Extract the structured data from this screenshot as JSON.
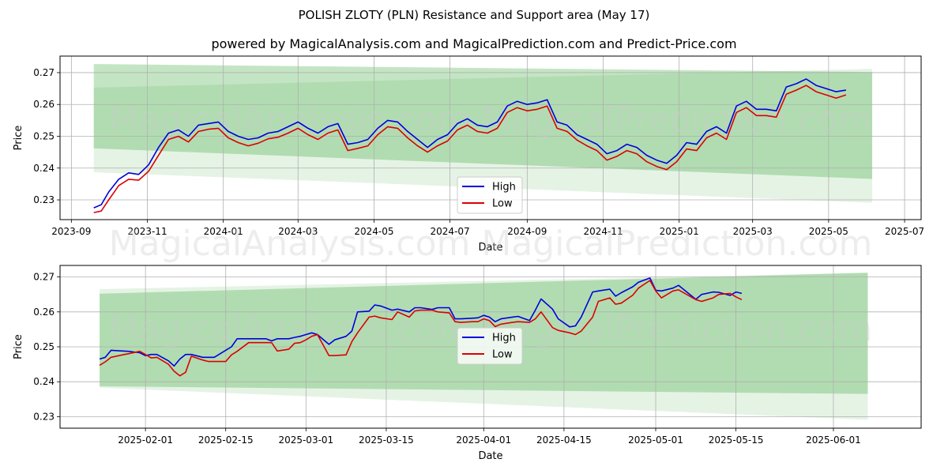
{
  "header": {
    "title": "POLISH ZLOTY (PLN) Resistance and Support area (May 17)",
    "subtitle": "powered by MagicalAnalysis.com and MagicalPrediction.com and Predict-Price.com"
  },
  "watermark": "MagicalAnalysis.com   MagicalPrediction.com",
  "colors": {
    "high": "#0000dd",
    "low": "#dd0000",
    "band": "#2ca02c",
    "grid": "#b0b0b0"
  },
  "chart_data": [
    {
      "type": "line",
      "xlabel": "Date",
      "ylabel": "Price",
      "x_tick_labels": [
        "2023-09",
        "2023-11",
        "2024-01",
        "2024-03",
        "2024-05",
        "2024-07",
        "2024-09",
        "2024-11",
        "2025-01",
        "2025-03",
        "2025-05",
        "2025-07"
      ],
      "x_tick_days": [
        0,
        61,
        122,
        182,
        243,
        304,
        366,
        427,
        488,
        547,
        608,
        669
      ],
      "xlim_days": [
        -9.1,
        682.3
      ],
      "y_ticks": [
        0.23,
        0.24,
        0.25,
        0.26,
        0.27
      ],
      "ylim": [
        0.2238,
        0.2752
      ],
      "grid": true,
      "legend": {
        "position": "lower-center",
        "entries": [
          "High",
          "Low"
        ]
      },
      "bands": [
        {
          "x0": 18.0,
          "x1": 643.0,
          "upper": [
            0.2727,
            0.2702
          ],
          "lower": [
            0.2462,
            0.2366
          ],
          "opacity": 0.28
        },
        {
          "x0": 18.0,
          "x1": 643.0,
          "upper": [
            0.2653,
            0.2712
          ],
          "lower": [
            0.2387,
            0.2291
          ],
          "opacity": 0.12
        }
      ],
      "series": [
        {
          "name": "High",
          "x": [
            18,
            24,
            30,
            38,
            46,
            54,
            62,
            70,
            78,
            86,
            94,
            102,
            110,
            118,
            126,
            134,
            142,
            150,
            158,
            166,
            174,
            182,
            190,
            198,
            206,
            214,
            222,
            230,
            238,
            246,
            254,
            262,
            270,
            278,
            286,
            294,
            302,
            310,
            318,
            326,
            334,
            342,
            350,
            358,
            366,
            374,
            382,
            390,
            398,
            406,
            414,
            422,
            430,
            438,
            446,
            454,
            462,
            470,
            478,
            486,
            494,
            502,
            510,
            518,
            526,
            534,
            542,
            550,
            558,
            566,
            574,
            582,
            590,
            598,
            606,
            614,
            622
          ],
          "values": [
            0.2275,
            0.2285,
            0.2325,
            0.2365,
            0.2385,
            0.238,
            0.241,
            0.2465,
            0.251,
            0.252,
            0.25,
            0.2535,
            0.254,
            0.2545,
            0.2515,
            0.25,
            0.249,
            0.2495,
            0.251,
            0.2515,
            0.253,
            0.2545,
            0.2525,
            0.251,
            0.253,
            0.254,
            0.2475,
            0.248,
            0.249,
            0.2525,
            0.255,
            0.2545,
            0.2515,
            0.249,
            0.2465,
            0.249,
            0.2505,
            0.254,
            0.2555,
            0.2535,
            0.253,
            0.2545,
            0.2595,
            0.261,
            0.26,
            0.2605,
            0.2615,
            0.2545,
            0.2535,
            0.2505,
            0.249,
            0.2475,
            0.2445,
            0.2455,
            0.2475,
            0.2465,
            0.244,
            0.2425,
            0.2415,
            0.244,
            0.248,
            0.2475,
            0.2515,
            0.253,
            0.251,
            0.2595,
            0.261,
            0.2585,
            0.2585,
            0.258,
            0.2655,
            0.2665,
            0.268,
            0.266,
            0.265,
            0.264,
            0.2645
          ]
        },
        {
          "name": "Low",
          "x": [
            18,
            24,
            30,
            38,
            46,
            54,
            62,
            70,
            78,
            86,
            94,
            102,
            110,
            118,
            126,
            134,
            142,
            150,
            158,
            166,
            174,
            182,
            190,
            198,
            206,
            214,
            222,
            230,
            238,
            246,
            254,
            262,
            270,
            278,
            286,
            294,
            302,
            310,
            318,
            326,
            334,
            342,
            350,
            358,
            366,
            374,
            382,
            390,
            398,
            406,
            414,
            422,
            430,
            438,
            446,
            454,
            462,
            470,
            478,
            486,
            494,
            502,
            510,
            518,
            526,
            534,
            542,
            550,
            558,
            566,
            574,
            582,
            590,
            598,
            606,
            614,
            622
          ],
          "values": [
            0.226,
            0.2265,
            0.23,
            0.2345,
            0.2365,
            0.2362,
            0.239,
            0.244,
            0.249,
            0.25,
            0.2482,
            0.2515,
            0.2522,
            0.2525,
            0.2495,
            0.248,
            0.247,
            0.2478,
            0.2492,
            0.2497,
            0.251,
            0.2525,
            0.2505,
            0.249,
            0.251,
            0.252,
            0.2455,
            0.2462,
            0.247,
            0.2505,
            0.253,
            0.2525,
            0.2495,
            0.247,
            0.245,
            0.247,
            0.2485,
            0.252,
            0.2535,
            0.2515,
            0.251,
            0.2525,
            0.2575,
            0.259,
            0.258,
            0.2585,
            0.2595,
            0.2525,
            0.2515,
            0.2488,
            0.247,
            0.2455,
            0.2425,
            0.2437,
            0.2455,
            0.2445,
            0.242,
            0.2405,
            0.2395,
            0.242,
            0.246,
            0.2455,
            0.2495,
            0.251,
            0.249,
            0.2575,
            0.259,
            0.2565,
            0.2565,
            0.256,
            0.2632,
            0.2645,
            0.266,
            0.264,
            0.263,
            0.262,
            0.263
          ]
        }
      ]
    },
    {
      "type": "line",
      "xlabel": "Date",
      "ylabel": "Price",
      "x_tick_labels": [
        "2025-02-01",
        "2025-02-15",
        "2025-03-01",
        "2025-03-15",
        "2025-04-01",
        "2025-04-15",
        "2025-05-01",
        "2025-05-15",
        "2025-06-01"
      ],
      "x_tick_days": [
        8,
        22,
        36,
        50,
        67,
        81,
        97,
        111,
        128
      ],
      "xlim_days": [
        -6.9,
        143.3
      ],
      "y_ticks": [
        0.23,
        0.24,
        0.25,
        0.26,
        0.27
      ],
      "ylim": [
        0.2267,
        0.2733
      ],
      "grid": true,
      "legend": {
        "position": "center",
        "entries": [
          "High",
          "Low"
        ]
      },
      "bands": [
        {
          "x0": 0,
          "x1": 134,
          "upper": [
            0.2652,
            0.2712
          ],
          "lower": [
            0.2387,
            0.2365
          ],
          "opacity": 0.28
        },
        {
          "x0": 0,
          "x1": 134,
          "upper": [
            0.2665,
            0.2712
          ],
          "lower": [
            0.2383,
            0.2291
          ],
          "opacity": 0.12
        }
      ],
      "series": [
        {
          "name": "High",
          "x": [
            0,
            1,
            2,
            4,
            5,
            7,
            8,
            9,
            10,
            12,
            13,
            14,
            15,
            16,
            18,
            19,
            20,
            22,
            23,
            24,
            26,
            27,
            29,
            30,
            31,
            33,
            34,
            35,
            36,
            37,
            38,
            40,
            41,
            43,
            44,
            45,
            47,
            48,
            49,
            51,
            52,
            54,
            55,
            56,
            58,
            59,
            61,
            62,
            63,
            65,
            66,
            67,
            68,
            69,
            70,
            72,
            73,
            75,
            76,
            77,
            79,
            80,
            82,
            83,
            84,
            86,
            87,
            89,
            90,
            91,
            93,
            94,
            96,
            97,
            98,
            100,
            101,
            104,
            105,
            107,
            108,
            110,
            111,
            112
          ],
          "values": [
            0.2465,
            0.247,
            0.249,
            0.2488,
            0.2487,
            0.2483,
            0.2475,
            0.2478,
            0.2478,
            0.246,
            0.2445,
            0.2465,
            0.2478,
            0.2478,
            0.247,
            0.247,
            0.247,
            0.249,
            0.25,
            0.2523,
            0.2523,
            0.2523,
            0.2523,
            0.2517,
            0.2523,
            0.2523,
            0.2527,
            0.253,
            0.2535,
            0.254,
            0.2535,
            0.2507,
            0.252,
            0.253,
            0.2545,
            0.26,
            0.2602,
            0.262,
            0.2617,
            0.2605,
            0.2608,
            0.26,
            0.2612,
            0.2612,
            0.2607,
            0.2612,
            0.2612,
            0.258,
            0.258,
            0.2582,
            0.2583,
            0.259,
            0.2585,
            0.2572,
            0.258,
            0.2585,
            0.2587,
            0.2575,
            0.2605,
            0.2637,
            0.2608,
            0.258,
            0.2557,
            0.256,
            0.2585,
            0.2657,
            0.266,
            0.2665,
            0.2645,
            0.2655,
            0.2672,
            0.2685,
            0.2697,
            0.2662,
            0.266,
            0.2668,
            0.2676,
            0.2636,
            0.265,
            0.2657,
            0.2656,
            0.2647,
            0.2657,
            0.2653
          ]
        },
        {
          "name": "Low",
          "x": [
            0,
            1,
            2,
            4,
            5,
            7,
            8,
            9,
            10,
            12,
            13,
            14,
            15,
            16,
            18,
            19,
            20,
            22,
            23,
            24,
            26,
            27,
            29,
            30,
            31,
            33,
            34,
            35,
            36,
            37,
            38,
            40,
            41,
            43,
            44,
            45,
            47,
            48,
            49,
            51,
            52,
            54,
            55,
            56,
            58,
            59,
            61,
            62,
            63,
            65,
            66,
            67,
            68,
            69,
            70,
            72,
            73,
            75,
            76,
            77,
            79,
            80,
            82,
            83,
            84,
            86,
            87,
            89,
            90,
            91,
            93,
            94,
            96,
            97,
            98,
            100,
            101,
            104,
            105,
            107,
            108,
            110,
            111,
            112
          ],
          "values": [
            0.2447,
            0.2457,
            0.247,
            0.2477,
            0.248,
            0.2487,
            0.2478,
            0.2468,
            0.247,
            0.245,
            0.243,
            0.2417,
            0.2427,
            0.2473,
            0.2462,
            0.2458,
            0.2458,
            0.2458,
            0.2477,
            0.2487,
            0.2512,
            0.2512,
            0.2512,
            0.2512,
            0.2488,
            0.2493,
            0.251,
            0.2512,
            0.252,
            0.253,
            0.2535,
            0.2475,
            0.2475,
            0.2477,
            0.2515,
            0.254,
            0.2585,
            0.2588,
            0.2583,
            0.2578,
            0.26,
            0.2585,
            0.2603,
            0.2605,
            0.2605,
            0.26,
            0.2597,
            0.2572,
            0.257,
            0.2572,
            0.2572,
            0.258,
            0.2575,
            0.2558,
            0.2565,
            0.257,
            0.2572,
            0.257,
            0.258,
            0.26,
            0.2555,
            0.2547,
            0.254,
            0.2535,
            0.2545,
            0.2585,
            0.263,
            0.264,
            0.2622,
            0.2625,
            0.2648,
            0.2668,
            0.269,
            0.266,
            0.264,
            0.266,
            0.2663,
            0.2635,
            0.263,
            0.264,
            0.265,
            0.2653,
            0.2643,
            0.2635
          ]
        }
      ]
    }
  ]
}
